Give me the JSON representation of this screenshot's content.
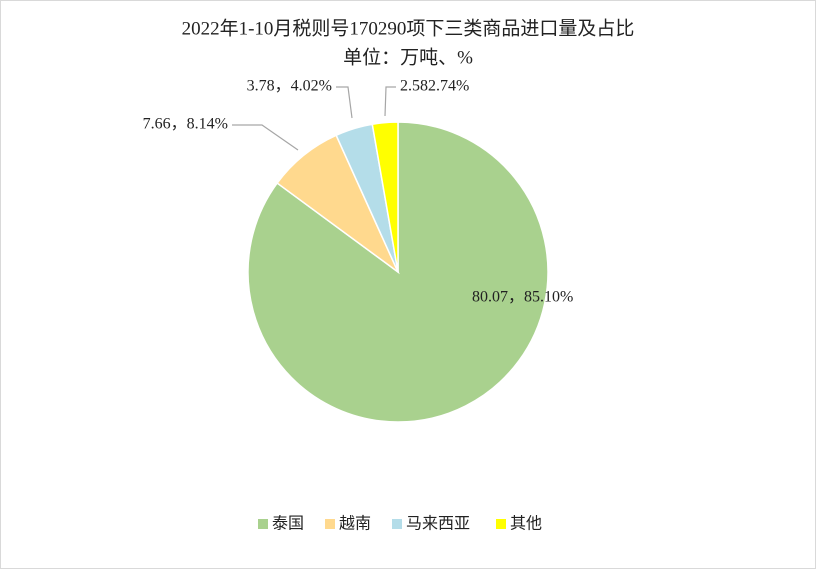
{
  "chart_data": {
    "type": "pie",
    "title": "2022年1-10月税则号170290项下三类商品进口量及占比",
    "subtitle": "单位：万吨、%",
    "categories": [
      "泰国",
      "越南",
      "马来西亚",
      "其他"
    ],
    "values": [
      80.07,
      7.66,
      3.78,
      2.58
    ],
    "value_labels": [
      "80.07，85.10%",
      "7.66，8.14%",
      "3.78，4.02%",
      "2.582.74%"
    ],
    "colors": [
      "#a9d18e",
      "#ffd98e",
      "#b4dde9",
      "#ffff00"
    ],
    "legend": "bottom"
  }
}
